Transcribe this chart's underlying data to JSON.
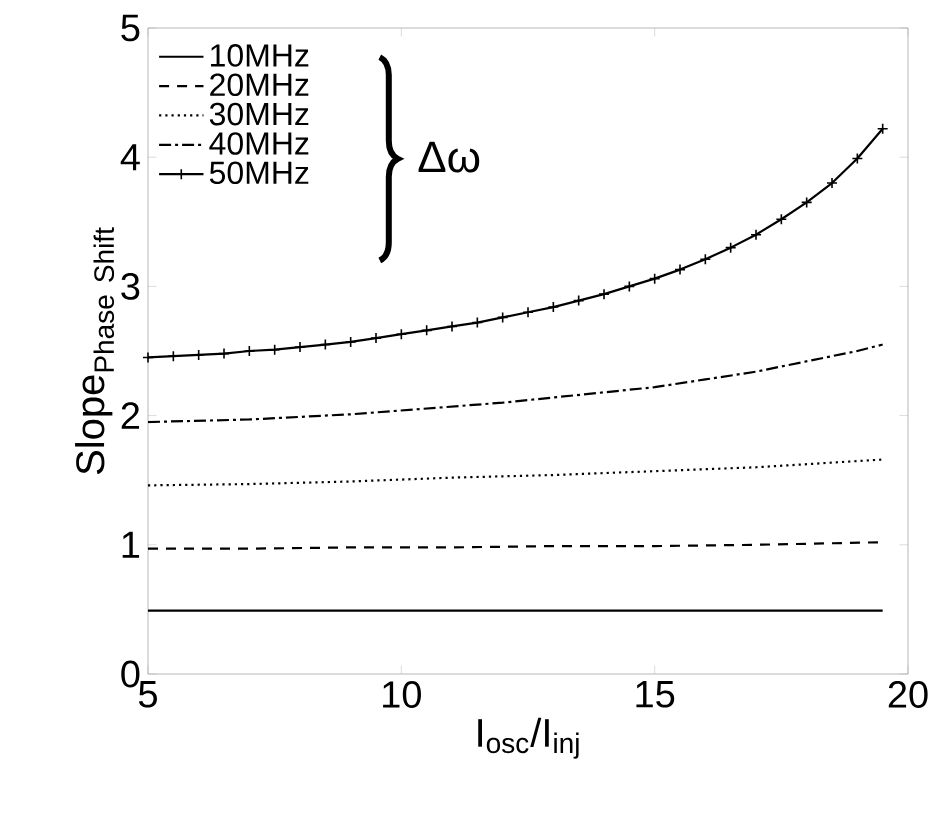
{
  "chart_data": {
    "type": "line",
    "xlabel": "I$_{osc}$/I$_{inj}$",
    "ylabel": "\\mathrm{Slope}_{\\mathrm{Phase\\ Shift}}",
    "xlim": [
      5,
      20
    ],
    "ylim": [
      0,
      5
    ],
    "xticks": [
      5,
      10,
      15,
      20
    ],
    "yticks": [
      0,
      1,
      2,
      3,
      4,
      5
    ],
    "legend": "top left",
    "grid": false,
    "annotations": [
      "Δω"
    ],
    "series": [
      {
        "name": "10MHz",
        "color": "#000000",
        "line_style": "solid",
        "marker": "none",
        "x": [
          5,
          10,
          15,
          19.5
        ],
        "values": [
          0.49,
          0.49,
          0.49,
          0.49
        ]
      },
      {
        "name": "20MHz",
        "color": "#000000",
        "line_style": "dashed",
        "marker": "none",
        "x": [
          5,
          7,
          9,
          11,
          13,
          15,
          17,
          19.5
        ],
        "values": [
          0.97,
          0.97,
          0.98,
          0.98,
          0.99,
          0.99,
          1.0,
          1.02
        ]
      },
      {
        "name": "30MHz",
        "color": "#000000",
        "line_style": "dotted",
        "marker": "none",
        "x": [
          5,
          7,
          9,
          11,
          13,
          15,
          17,
          19.5
        ],
        "values": [
          1.46,
          1.47,
          1.49,
          1.52,
          1.54,
          1.57,
          1.6,
          1.66
        ]
      },
      {
        "name": "40MHz",
        "color": "#000000",
        "line_style": "dashdot",
        "marker": "none",
        "x": [
          5,
          6,
          7,
          8,
          9,
          10,
          11,
          12,
          13,
          14,
          15,
          16,
          17,
          18,
          19,
          19.5
        ],
        "values": [
          1.95,
          1.96,
          1.97,
          1.99,
          2.01,
          2.04,
          2.07,
          2.1,
          2.14,
          2.18,
          2.22,
          2.28,
          2.34,
          2.42,
          2.5,
          2.55
        ]
      },
      {
        "name": "50MHz",
        "color": "#000000",
        "line_style": "solid",
        "marker": "cross",
        "x": [
          5,
          5.5,
          6,
          6.5,
          7,
          7.5,
          8,
          8.5,
          9,
          9.5,
          10,
          10.5,
          11,
          11.5,
          12,
          12.5,
          13,
          13.5,
          14,
          14.5,
          15,
          15.5,
          16,
          16.5,
          17,
          17.5,
          18,
          18.5,
          19,
          19.5
        ],
        "values": [
          2.45,
          2.46,
          2.47,
          2.48,
          2.5,
          2.51,
          2.53,
          2.55,
          2.57,
          2.6,
          2.63,
          2.66,
          2.69,
          2.72,
          2.76,
          2.8,
          2.84,
          2.89,
          2.94,
          3.0,
          3.06,
          3.13,
          3.21,
          3.3,
          3.4,
          3.52,
          3.65,
          3.8,
          3.99,
          4.22
        ]
      }
    ]
  }
}
